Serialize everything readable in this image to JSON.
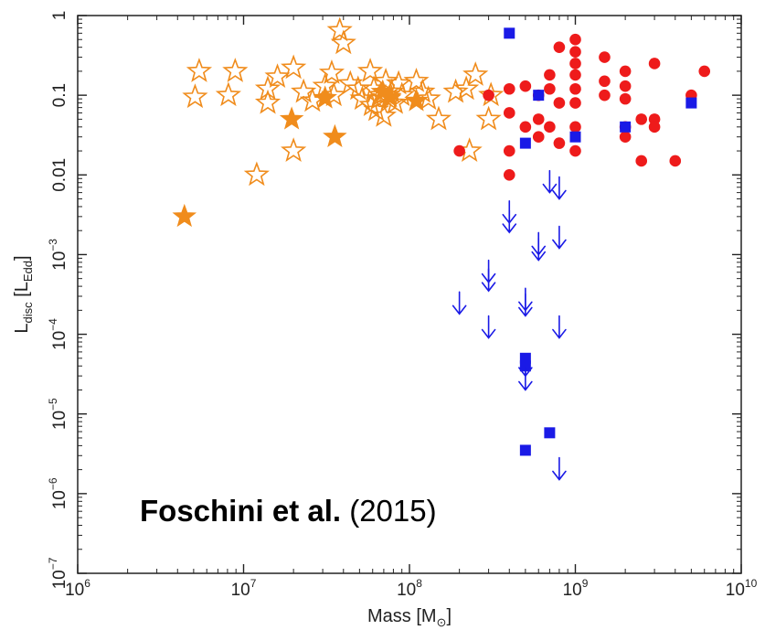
{
  "chart_data": {
    "type": "scatter",
    "x_scale": "log",
    "y_scale": "log",
    "xlim": [
      1000000.0,
      10000000000.0
    ],
    "ylim": [
      1e-07,
      1
    ],
    "xlabel": {
      "main": "Mass [M",
      "sub": "⊙",
      "close": "]"
    },
    "ylabel": {
      "main": "L",
      "sub": "disc",
      "mid": " [L",
      "sub2": "Edd",
      "close": "]"
    },
    "x_ticks": [
      {
        "base": "10",
        "exp": "6"
      },
      {
        "base": "10",
        "exp": "7"
      },
      {
        "base": "10",
        "exp": "8"
      },
      {
        "base": "10",
        "exp": "9"
      },
      {
        "base": "10",
        "exp": "10"
      }
    ],
    "y_ticks": [
      {
        "text": "1"
      },
      {
        "text": "0.1"
      },
      {
        "text": "0.01"
      },
      {
        "base": "10",
        "exp": "−3"
      },
      {
        "base": "10",
        "exp": "−4"
      },
      {
        "base": "10",
        "exp": "−5"
      },
      {
        "base": "10",
        "exp": "−6"
      },
      {
        "base": "10",
        "exp": "−7"
      }
    ],
    "annotation": {
      "bold": "Foschini et al.",
      "normal": " (2015)"
    },
    "colors": {
      "orange": "#f08c1c",
      "red": "#ee1b1b",
      "blue": "#1a1ae6"
    },
    "series": [
      {
        "marker": "star-open",
        "color": "#f08c1c",
        "points": [
          [
            5400000.0,
            0.2
          ],
          [
            5100000.0,
            0.095
          ],
          [
            8900000.0,
            0.2
          ],
          [
            8100000.0,
            0.1
          ],
          [
            12000000.0,
            0.01
          ],
          [
            14000000.0,
            0.12
          ],
          [
            14000000.0,
            0.08
          ],
          [
            16000000.0,
            0.17
          ],
          [
            20000000.0,
            0.22
          ],
          [
            20000000.0,
            0.02
          ],
          [
            23000000.0,
            0.11
          ],
          [
            26000000.0,
            0.085
          ],
          [
            31000000.0,
            0.13
          ],
          [
            35000000.0,
            0.1
          ],
          [
            38000000.0,
            0.65
          ],
          [
            40000000.0,
            0.45
          ],
          [
            34000000.0,
            0.19
          ],
          [
            44000000.0,
            0.14
          ],
          [
            49000000.0,
            0.12
          ],
          [
            52000000.0,
            0.09
          ],
          [
            58000000.0,
            0.2
          ],
          [
            59000000.0,
            0.075
          ],
          [
            61000000.0,
            0.12
          ],
          [
            63000000.0,
            0.065
          ],
          [
            65000000.0,
            0.09
          ],
          [
            67000000.0,
            0.1
          ],
          [
            72000000.0,
            0.15
          ],
          [
            75000000.0,
            0.09
          ],
          [
            78000000.0,
            0.11
          ],
          [
            82000000.0,
            0.08
          ],
          [
            86000000.0,
            0.14
          ],
          [
            90000000.0,
            0.1
          ],
          [
            70000000.0,
            0.055
          ],
          [
            110000000.0,
            0.15
          ],
          [
            120000000.0,
            0.11
          ],
          [
            130000000.0,
            0.09
          ],
          [
            150000000.0,
            0.05
          ],
          [
            190000000.0,
            0.11
          ],
          [
            220000000.0,
            0.12
          ],
          [
            230000000.0,
            0.02
          ],
          [
            250000000.0,
            0.18
          ],
          [
            300000000.0,
            0.05
          ],
          [
            310000000.0,
            0.1
          ]
        ]
      },
      {
        "marker": "star-filled",
        "color": "#f08c1c",
        "points": [
          [
            4400000.0,
            0.003
          ],
          [
            19500000.0,
            0.05
          ],
          [
            31000000.0,
            0.092
          ],
          [
            35500000.0,
            0.03
          ],
          [
            69000000.0,
            0.11
          ],
          [
            76000000.0,
            0.095
          ],
          [
            110000000.0,
            0.085
          ]
        ]
      },
      {
        "marker": "circle",
        "color": "#ee1b1b",
        "points": [
          [
            200000000.0,
            0.02
          ],
          [
            300000000.0,
            0.1
          ],
          [
            400000000.0,
            0.12
          ],
          [
            400000000.0,
            0.06
          ],
          [
            400000000.0,
            0.02
          ],
          [
            400000000.0,
            0.01
          ],
          [
            500000000.0,
            0.13
          ],
          [
            500000000.0,
            0.04
          ],
          [
            600000000.0,
            0.1
          ],
          [
            600000000.0,
            0.05
          ],
          [
            600000000.0,
            0.03
          ],
          [
            700000000.0,
            0.18
          ],
          [
            700000000.0,
            0.12
          ],
          [
            700000000.0,
            0.04
          ],
          [
            800000000.0,
            0.4
          ],
          [
            800000000.0,
            0.08
          ],
          [
            800000000.0,
            0.025
          ],
          [
            1000000000.0,
            0.5
          ],
          [
            1000000000.0,
            0.35
          ],
          [
            1000000000.0,
            0.25
          ],
          [
            1000000000.0,
            0.18
          ],
          [
            1000000000.0,
            0.12
          ],
          [
            1000000000.0,
            0.08
          ],
          [
            1000000000.0,
            0.04
          ],
          [
            1000000000.0,
            0.02
          ],
          [
            1500000000.0,
            0.3
          ],
          [
            1500000000.0,
            0.15
          ],
          [
            1500000000.0,
            0.1
          ],
          [
            2000000000.0,
            0.2
          ],
          [
            2000000000.0,
            0.13
          ],
          [
            2000000000.0,
            0.09
          ],
          [
            2000000000.0,
            0.04
          ],
          [
            2000000000.0,
            0.03
          ],
          [
            2500000000.0,
            0.05
          ],
          [
            2500000000.0,
            0.015
          ],
          [
            3000000000.0,
            0.25
          ],
          [
            3000000000.0,
            0.05
          ],
          [
            3000000000.0,
            0.04
          ],
          [
            4000000000.0,
            0.015
          ],
          [
            5000000000.0,
            0.1
          ],
          [
            6000000000.0,
            0.2
          ]
        ]
      },
      {
        "marker": "square",
        "color": "#1a1ae6",
        "points": [
          [
            400000000.0,
            0.6
          ],
          [
            500000000.0,
            0.025
          ],
          [
            600000000.0,
            0.1
          ],
          [
            1000000000.0,
            0.03
          ],
          [
            2000000000.0,
            0.04
          ],
          [
            5000000000.0,
            0.08
          ],
          [
            500000000.0,
            5e-05
          ],
          [
            500000000.0,
            4e-05
          ],
          [
            500000000.0,
            3.5e-06
          ],
          [
            700000000.0,
            5.8e-06
          ]
        ]
      },
      {
        "marker": "arrow-down",
        "color": "#1a1ae6",
        "points": [
          [
            700000000.0,
            0.006
          ],
          [
            800000000.0,
            0.005
          ],
          [
            400000000.0,
            0.0025
          ],
          [
            400000000.0,
            0.0019
          ],
          [
            800000000.0,
            0.0012
          ],
          [
            600000000.0,
            0.001
          ],
          [
            600000000.0,
            0.00085
          ],
          [
            300000000.0,
            0.00045
          ],
          [
            300000000.0,
            0.00035
          ],
          [
            200000000.0,
            0.00018
          ],
          [
            500000000.0,
            0.0002
          ],
          [
            500000000.0,
            0.00017
          ],
          [
            300000000.0,
            9e-05
          ],
          [
            800000000.0,
            9e-05
          ],
          [
            500000000.0,
            3e-05
          ],
          [
            500000000.0,
            2e-05
          ],
          [
            800000000.0,
            1.5e-06
          ]
        ]
      }
    ]
  }
}
